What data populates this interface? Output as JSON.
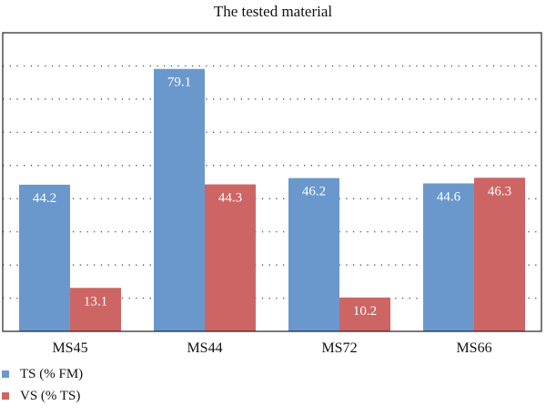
{
  "chart_data": {
    "type": "bar",
    "title": "The tested material",
    "categories": [
      "MS45",
      "MS44",
      "MS72",
      "MS66"
    ],
    "series": [
      {
        "name": "TS (% FM)",
        "values": [
          44.2,
          79.1,
          46.2,
          44.6
        ],
        "color": "#6a98cd"
      },
      {
        "name": "VS (% TS)",
        "values": [
          13.1,
          44.3,
          10.2,
          46.3
        ],
        "color": "#cd6565"
      }
    ],
    "ylim": [
      0,
      90
    ],
    "y_grid_step": 10,
    "grid": true,
    "legend_placement": "bottom-left",
    "xlabel": "",
    "ylabel": ""
  }
}
